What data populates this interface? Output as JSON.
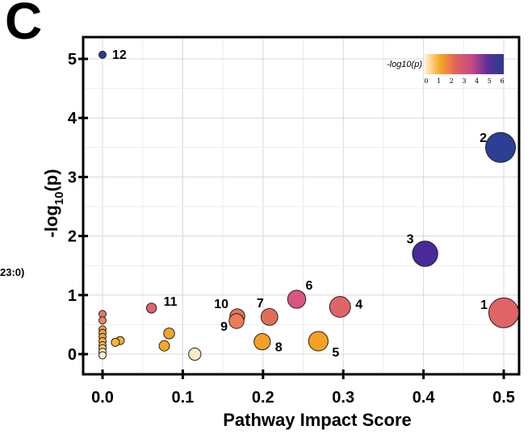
{
  "figure": {
    "panel_label": "C",
    "side_text": "23:0)"
  },
  "chart_data": {
    "type": "scatter",
    "title": "",
    "xlabel": "Pathway Impact Score",
    "ylabel": "-log10(p)",
    "xlim": [
      0.0,
      0.5
    ],
    "ylim": [
      0.0,
      5.0
    ],
    "x_ticks": [
      "0.0",
      "0.1",
      "0.2",
      "0.3",
      "0.4",
      "0.5"
    ],
    "y_ticks": [
      "0",
      "1",
      "2",
      "3",
      "4",
      "5"
    ],
    "grid": true,
    "legend": {
      "title": "-log10(p)",
      "placement": "top-right",
      "ticks": [
        "0",
        "1",
        "2",
        "3",
        "4",
        "5",
        "6"
      ],
      "color_stops": [
        "#fff3d6",
        "#f6a623",
        "#e0605e",
        "#c44a86",
        "#5a2f9a",
        "#2a3c8f"
      ]
    },
    "points": [
      {
        "label": "12",
        "x": 0.0,
        "y": 5.07,
        "impact": 0.0,
        "color": "#2b3c8c"
      },
      {
        "label": "2",
        "x": 0.496,
        "y": 3.5,
        "impact": 0.5,
        "color": "#2c3f95"
      },
      {
        "label": "3",
        "x": 0.402,
        "y": 1.7,
        "impact": 0.4,
        "color": "#4a2a98"
      },
      {
        "label": "1",
        "x": 0.5,
        "y": 0.7,
        "impact": 0.5,
        "color": "#e06365"
      },
      {
        "label": "4",
        "x": 0.296,
        "y": 0.8,
        "impact": 0.3,
        "color": "#df6468"
      },
      {
        "label": "6",
        "x": 0.242,
        "y": 0.93,
        "impact": 0.24,
        "color": "#d85583"
      },
      {
        "label": "7",
        "x": 0.208,
        "y": 0.63,
        "impact": 0.21,
        "color": "#e26e5a"
      },
      {
        "label": "10",
        "x": 0.168,
        "y": 0.64,
        "impact": 0.17,
        "color": "#e77458"
      },
      {
        "label": "9",
        "x": 0.167,
        "y": 0.56,
        "impact": 0.17,
        "color": "#ea7c56"
      },
      {
        "label": "11",
        "x": 0.061,
        "y": 0.78,
        "impact": 0.06,
        "color": "#e06470"
      },
      {
        "label": "8",
        "x": 0.199,
        "y": 0.21,
        "impact": 0.2,
        "color": "#f5a024"
      },
      {
        "label": "5",
        "x": 0.269,
        "y": 0.22,
        "impact": 0.27,
        "color": "#f4a124"
      },
      {
        "label": "",
        "x": 0.115,
        "y": 0.0,
        "impact": 0.11,
        "color": "#fcebc7"
      },
      {
        "label": "",
        "x": 0.083,
        "y": 0.35,
        "impact": 0.08,
        "color": "#f6a52a"
      },
      {
        "label": "",
        "x": 0.077,
        "y": 0.14,
        "impact": 0.07,
        "color": "#f6a62a"
      },
      {
        "label": "",
        "x": 0.022,
        "y": 0.23,
        "impact": 0.02,
        "color": "#f7b233"
      },
      {
        "label": "",
        "x": 0.016,
        "y": 0.2,
        "impact": 0.02,
        "color": "#f8b636"
      },
      {
        "label": "",
        "x": 0.0,
        "y": 0.68,
        "impact": 0.0,
        "color": "#e47668"
      },
      {
        "label": "",
        "x": 0.0,
        "y": 0.57,
        "impact": 0.0,
        "color": "#ea8760"
      },
      {
        "label": "",
        "x": 0.0,
        "y": 0.42,
        "impact": 0.0,
        "color": "#f29a45"
      },
      {
        "label": "",
        "x": 0.0,
        "y": 0.36,
        "impact": 0.0,
        "color": "#f49e3a"
      },
      {
        "label": "",
        "x": 0.0,
        "y": 0.29,
        "impact": 0.0,
        "color": "#f5a53a"
      },
      {
        "label": "",
        "x": 0.0,
        "y": 0.22,
        "impact": 0.0,
        "color": "#f7b040"
      },
      {
        "label": "",
        "x": 0.0,
        "y": 0.15,
        "impact": 0.0,
        "color": "#f9c05a"
      },
      {
        "label": "",
        "x": 0.0,
        "y": 0.1,
        "impact": 0.0,
        "color": "#fbd088"
      },
      {
        "label": "",
        "x": 0.0,
        "y": 0.04,
        "impact": 0.0,
        "color": "#fce0b0"
      },
      {
        "label": "",
        "x": 0.0,
        "y": -0.02,
        "impact": 0.0,
        "color": "#fdeccc"
      }
    ]
  }
}
